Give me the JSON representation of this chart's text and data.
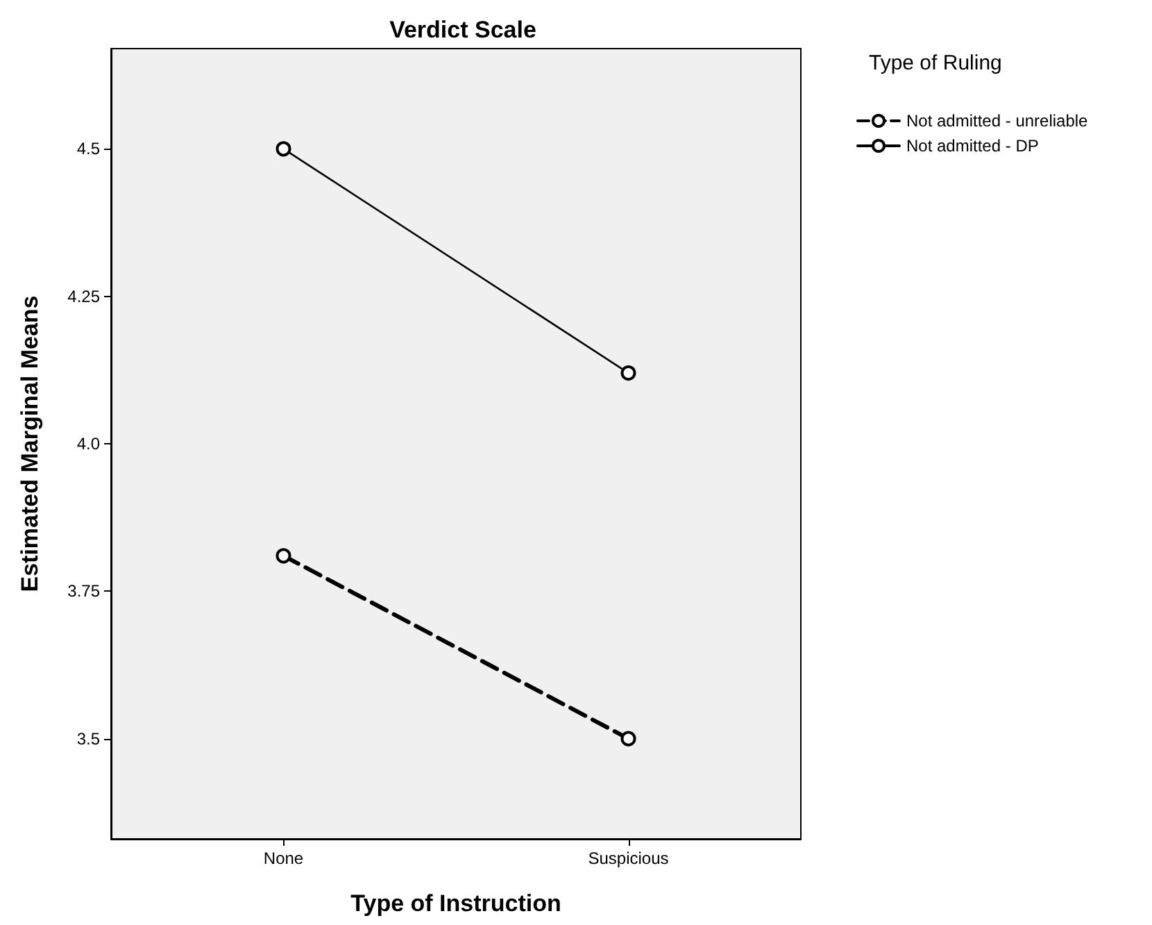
{
  "chart_data": {
    "type": "line",
    "title": "Verdict Scale",
    "xlabel": "Type of Instruction",
    "ylabel": "Estimated Marginal Means",
    "legend_title": "Type of Ruling",
    "categories": [
      "None",
      "Suspicious"
    ],
    "series": [
      {
        "name": "Not admitted - unreliable",
        "color": "#000000",
        "values": [
          3.81,
          3.5
        ],
        "line_style": "dashed"
      },
      {
        "name": "Not admitted - DP",
        "color": "#000000",
        "values": [
          4.5,
          4.12
        ],
        "line_style": "solid"
      }
    ],
    "ylim": [
      3.33,
      4.67
    ],
    "yticks": [
      3.5,
      3.75,
      {
        "value": 4,
        "label": "4.0"
      },
      4.25,
      4.5
    ],
    "marker": "circle",
    "legend": "top right",
    "grid": false
  }
}
